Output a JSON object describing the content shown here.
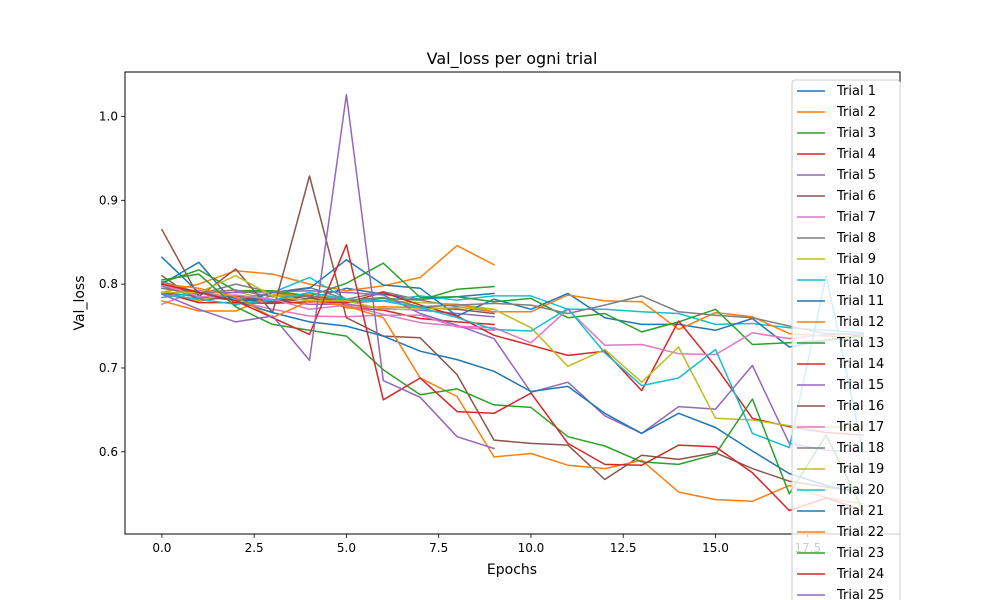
{
  "chart_data": {
    "type": "line",
    "title": "Val_loss per ogni trial",
    "xlabel": "Epochs",
    "ylabel": "Val_loss",
    "xlim": [
      -1.0,
      20.0
    ],
    "ylim": [
      0.502,
      1.053
    ],
    "x_ticks": [
      0.0,
      2.5,
      5.0,
      7.5,
      10.0,
      12.5,
      15.0,
      17.5
    ],
    "x_tick_labels": [
      "0.0",
      "2.5",
      "5.0",
      "7.5",
      "10.0",
      "12.5",
      "15.0",
      "17.5"
    ],
    "y_ticks": [
      0.6,
      0.7,
      0.8,
      0.9,
      1.0
    ],
    "y_tick_labels": [
      "0.6",
      "0.7",
      "0.8",
      "0.9",
      "1.0"
    ],
    "grid": false,
    "legend_position": "top-right",
    "series": [
      {
        "name": "Trial 1",
        "color": "#1f77b4",
        "values": [
          0.79,
          0.785,
          0.781,
          0.779,
          0.783,
          0.795,
          0.788,
          0.782,
          0.785,
          0.789
        ]
      },
      {
        "name": "Trial 2",
        "color": "#ff7f0e",
        "values": [
          0.79,
          0.8,
          0.816,
          0.812,
          0.8,
          0.792,
          0.798,
          0.808,
          0.846,
          0.823
        ]
      },
      {
        "name": "Trial 3",
        "color": "#2ca02c",
        "values": [
          0.795,
          0.79,
          0.78,
          0.79,
          0.785,
          0.779,
          0.783,
          0.781,
          0.794,
          0.797
        ]
      },
      {
        "name": "Trial 4",
        "color": "#d62728",
        "values": [
          0.8,
          0.791,
          0.783,
          0.78,
          0.786,
          0.772,
          0.769,
          0.759,
          0.755,
          0.752
        ]
      },
      {
        "name": "Trial 5",
        "color": "#9467bd",
        "values": [
          0.798,
          0.783,
          0.786,
          0.78,
          0.776,
          0.776,
          0.771,
          0.769,
          0.765,
          0.761
        ]
      },
      {
        "name": "Trial 6",
        "color": "#8c564b",
        "values": [
          0.81,
          0.78,
          0.786,
          0.778,
          0.783,
          0.778,
          0.78,
          0.772,
          0.77,
          0.765
        ]
      },
      {
        "name": "Trial 7",
        "color": "#e377c2",
        "values": [
          0.776,
          0.793,
          0.78,
          0.77,
          0.762,
          0.761,
          0.763,
          0.763,
          0.749,
          0.745
        ]
      },
      {
        "name": "Trial 8",
        "color": "#7f7f7f",
        "values": [
          0.795,
          0.788,
          0.8,
          0.79,
          0.796,
          0.782,
          0.791,
          0.781,
          0.773,
          0.767
        ]
      },
      {
        "name": "Trial 9",
        "color": "#bcbd22",
        "values": [
          0.788,
          0.78,
          0.791,
          0.781,
          0.789,
          0.78,
          0.78,
          0.778,
          0.776,
          0.77
        ]
      },
      {
        "name": "Trial 10",
        "color": "#17becf",
        "values": [
          0.784,
          0.79,
          0.782,
          0.79,
          0.808,
          0.782,
          0.78,
          0.786,
          0.781,
          0.786,
          0.786,
          0.77,
          0.77,
          0.767,
          0.765,
          0.752,
          0.753,
          0.748,
          0.745,
          0.742
        ]
      },
      {
        "name": "Trial 11",
        "color": "#1f77b4",
        "values": [
          0.8,
          0.826,
          0.775,
          0.79,
          0.795,
          0.829,
          0.799,
          0.795,
          0.762,
          0.782,
          0.77,
          0.789,
          0.76,
          0.752,
          0.752,
          0.745,
          0.759,
          0.725,
          0.733,
          0.74
        ]
      },
      {
        "name": "Trial 12",
        "color": "#ff7f0e",
        "values": [
          0.78,
          0.768,
          0.768,
          0.787,
          0.787,
          0.772,
          0.773,
          0.772,
          0.776,
          0.767,
          0.767,
          0.787,
          0.78,
          0.779,
          0.746,
          0.766,
          0.761,
          0.741,
          0.738,
          0.737
        ]
      },
      {
        "name": "Trial 13",
        "color": "#2ca02c",
        "values": [
          0.802,
          0.817,
          0.792,
          0.792,
          0.786,
          0.801,
          0.825,
          0.784,
          0.785,
          0.779,
          0.783,
          0.76,
          0.765,
          0.743,
          0.755,
          0.77,
          0.728,
          0.73,
          0.733,
          0.738
        ]
      },
      {
        "name": "Trial 14",
        "color": "#d62728",
        "values": [
          0.79,
          0.778,
          0.778,
          0.777,
          0.779,
          0.778,
          0.79,
          0.775,
          0.762,
          0.739,
          0.727,
          0.715,
          0.72,
          0.673,
          0.756,
          0.702,
          0.64,
          0.63,
          0.623,
          0.62
        ]
      },
      {
        "name": "Trial 15",
        "color": "#9467bd",
        "values": [
          0.8,
          0.79,
          0.79,
          0.791,
          0.792,
          0.79,
          0.787,
          0.765,
          0.751,
          0.735,
          0.671,
          0.683,
          0.643,
          0.622,
          0.654,
          0.651,
          0.703,
          0.61,
          0.602,
          0.6
        ]
      },
      {
        "name": "Trial 16",
        "color": "#8c564b",
        "values": [
          0.865,
          0.785,
          0.818,
          0.766,
          0.929,
          0.76,
          0.738,
          0.736,
          0.692,
          0.614,
          0.61,
          0.608,
          0.567,
          0.596,
          0.591,
          0.599,
          0.58,
          0.565,
          0.558,
          0.552
        ]
      },
      {
        "name": "Trial 17",
        "color": "#e377c2",
        "values": [
          0.8,
          0.785,
          0.787,
          0.782,
          0.77,
          0.775,
          0.764,
          0.754,
          0.75,
          0.748,
          0.73,
          0.77,
          0.727,
          0.728,
          0.717,
          0.716,
          0.742,
          0.735,
          0.74,
          0.74
        ]
      },
      {
        "name": "Trial 18",
        "color": "#7f7f7f",
        "values": [
          0.803,
          0.79,
          0.793,
          0.785,
          0.786,
          0.781,
          0.784,
          0.773,
          0.775,
          0.777,
          0.775,
          0.765,
          0.775,
          0.786,
          0.767,
          0.763,
          0.76,
          0.75,
          0.741,
          0.74
        ]
      },
      {
        "name": "Trial 19",
        "color": "#bcbd22",
        "values": [
          0.79,
          0.79,
          0.81,
          0.786,
          0.78,
          0.78,
          0.77,
          0.77,
          0.772,
          0.77,
          0.748,
          0.702,
          0.722,
          0.683,
          0.725,
          0.64,
          0.638,
          0.631,
          0.63,
          0.628
        ]
      },
      {
        "name": "Trial 20",
        "color": "#17becf",
        "values": [
          0.788,
          0.782,
          0.776,
          0.781,
          0.79,
          0.782,
          0.78,
          0.772,
          0.76,
          0.746,
          0.744,
          0.771,
          0.718,
          0.679,
          0.688,
          0.722,
          0.622,
          0.605,
          0.81,
          0.6
        ]
      },
      {
        "name": "Trial 21",
        "color": "#1f77b4",
        "values": [
          0.832,
          0.79,
          0.78,
          0.766,
          0.755,
          0.75,
          0.738,
          0.72,
          0.71,
          0.696,
          0.672,
          0.678,
          0.646,
          0.622,
          0.646,
          0.629,
          0.601,
          0.574,
          0.56,
          0.55
        ]
      },
      {
        "name": "Trial 22",
        "color": "#ff7f0e",
        "values": [
          0.8,
          0.795,
          0.785,
          0.76,
          0.78,
          0.774,
          0.76,
          0.688,
          0.666,
          0.594,
          0.598,
          0.584,
          0.58,
          0.59,
          0.552,
          0.543,
          0.541,
          0.56,
          0.545,
          0.538
        ]
      },
      {
        "name": "Trial 23",
        "color": "#2ca02c",
        "values": [
          0.805,
          0.812,
          0.773,
          0.752,
          0.745,
          0.738,
          0.698,
          0.668,
          0.675,
          0.656,
          0.653,
          0.618,
          0.607,
          0.588,
          0.585,
          0.597,
          0.663,
          0.55,
          0.62,
          0.53
        ]
      },
      {
        "name": "Trial 24",
        "color": "#d62728",
        "values": [
          0.8,
          0.79,
          0.78,
          0.76,
          0.74,
          0.847,
          0.662,
          0.688,
          0.648,
          0.646,
          0.67,
          0.61,
          0.585,
          0.584,
          0.608,
          0.606,
          0.575,
          0.53,
          0.545,
          0.53
        ]
      },
      {
        "name": "Trial 25",
        "color": "#9467bd",
        "values": [
          0.788,
          0.77,
          0.755,
          0.762,
          0.709,
          1.026,
          0.685,
          0.665,
          0.618,
          0.604
        ]
      }
    ]
  }
}
